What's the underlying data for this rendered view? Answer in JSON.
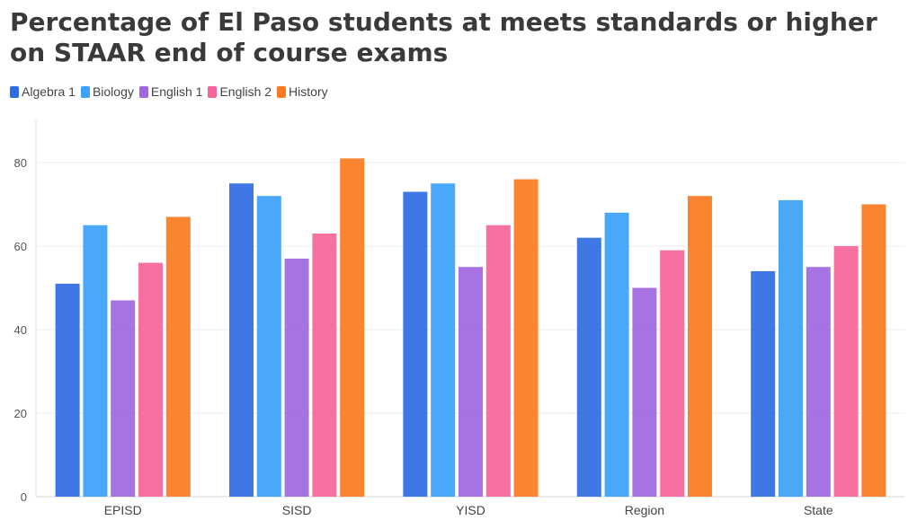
{
  "chart_data": {
    "type": "bar",
    "title": "Percentage of El Paso students at meets standards or higher on STAAR end of course exams",
    "categories": [
      "EPISD",
      "SISD",
      "YISD",
      "Region",
      "State"
    ],
    "series": [
      {
        "name": "Algebra 1",
        "color": "#2f6be3",
        "values": [
          51,
          75,
          73,
          62,
          54
        ]
      },
      {
        "name": "Biology",
        "color": "#3ba1fb",
        "values": [
          65,
          72,
          75,
          68,
          71
        ]
      },
      {
        "name": "English 1",
        "color": "#a066e0",
        "values": [
          47,
          57,
          55,
          50,
          55
        ]
      },
      {
        "name": "English 2",
        "color": "#f5649a",
        "values": [
          56,
          63,
          65,
          59,
          60
        ]
      },
      {
        "name": "History",
        "color": "#fb7a1f",
        "values": [
          67,
          81,
          76,
          72,
          70
        ]
      }
    ],
    "yticks": [
      0,
      20,
      40,
      60,
      80
    ],
    "ylim": [
      0,
      90
    ],
    "grid": true,
    "legend_position": "top-left"
  }
}
